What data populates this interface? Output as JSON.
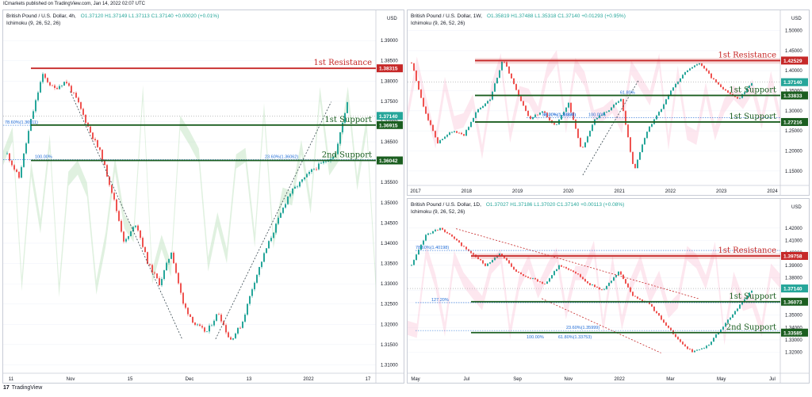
{
  "header": {
    "publisher_text": "ICmarkets published on TradingView.com, Jan 14, 2022 02:07 UTC"
  },
  "footer": {
    "logo_text": "17",
    "brand": "TradingView"
  },
  "colors": {
    "resistance": "#c62828",
    "support": "#1b5e20",
    "fib": "#1e6bd6",
    "bull": "#26a69a",
    "bear": "#ef5350",
    "ichimoku_green": "#a5d6a7",
    "ichimoku_red": "#f8bbd0"
  },
  "panels": [
    {
      "id": "left",
      "title": "British Pound / U.S. Dollar, 4h,",
      "ohlc": "O1.37120  H1.37149  L1.37113  C1.37140  +0.00020 (+0.01%)",
      "indicator": "Ichimoku (9, 26, 52, 26)",
      "currency": "USD",
      "y_ticks": [
        "1.39000",
        "1.38500",
        "1.38000",
        "1.37500",
        "1.37000",
        "1.36500",
        "1.36000",
        "1.35500",
        "1.35000",
        "1.34500",
        "1.34000",
        "1.33500",
        "1.33000",
        "1.32500",
        "1.32000",
        "1.31500",
        "1.31000"
      ],
      "x_ticks": [
        "11",
        "Nov",
        "15",
        "Dec",
        "13",
        "2022",
        "17"
      ],
      "price_tags": [
        {
          "text": "1.38315",
          "kind": "resistance"
        },
        {
          "text": "1.37140",
          "kind": "current"
        },
        {
          "text": "1.36915",
          "kind": "support"
        },
        {
          "text": "1.36042",
          "kind": "support"
        }
      ],
      "labels": [
        {
          "text": "1st Resistance",
          "kind": "resistance"
        },
        {
          "text": "1st Support",
          "kind": "support"
        },
        {
          "text": "2nd Support",
          "kind": "support"
        }
      ],
      "fib_labels": [
        "78.60%(1.36911)",
        "100.00%",
        "23.60%(1.36062)"
      ]
    },
    {
      "id": "top-right",
      "title": "British Pound / U.S. Dollar, 1W,",
      "ohlc": "O1.35819  H1.37488  L1.35318  C1.37140  +0.01293 (+0.95%)",
      "indicator": "Ichimoku (9, 26, 52, 26)",
      "currency": "USD",
      "y_ticks": [
        "1.50000",
        "1.45000",
        "1.40000",
        "1.35000",
        "1.30000",
        "1.25000",
        "1.20000",
        "1.15000"
      ],
      "x_ticks": [
        "2017",
        "2018",
        "2019",
        "2020",
        "2021",
        "2022",
        "2023",
        "2024"
      ],
      "price_tags": [
        {
          "text": "1.42529",
          "kind": "resistance"
        },
        {
          "text": "1.37140",
          "kind": "current"
        },
        {
          "text": "1.33833",
          "kind": "support"
        },
        {
          "text": "1.27216",
          "kind": "support"
        }
      ],
      "labels": [
        {
          "text": "1st Resistance",
          "kind": "resistance"
        },
        {
          "text": "1st Support",
          "kind": "support"
        },
        {
          "text": "1st Support",
          "kind": "support"
        }
      ],
      "fib_labels": [
        "61.80%",
        "100.00%",
        "38.20%(1.33828)",
        "50.00%(1.28285)"
      ]
    },
    {
      "id": "bottom-right",
      "title": "British Pound / U.S. Dollar, 1D,",
      "ohlc": "O1.37027  H1.37186  L1.37020  C1.37140  +0.00113 (+0.08%)",
      "indicator": "Ichimoku (9, 26, 52, 26)",
      "currency": "USD",
      "y_ticks": [
        "1.42000",
        "1.41000",
        "1.40000",
        "1.39000",
        "1.38000",
        "1.37000",
        "1.36000",
        "1.35000",
        "1.34000",
        "1.33000",
        "1.32000"
      ],
      "x_ticks": [
        "May",
        "Jul",
        "Sep",
        "Nov",
        "2022",
        "Mar",
        "May",
        "Jul"
      ],
      "price_tags": [
        {
          "text": "1.39758",
          "kind": "resistance"
        },
        {
          "text": "1.37140",
          "kind": "current"
        },
        {
          "text": "1.36073",
          "kind": "support"
        },
        {
          "text": "1.33585",
          "kind": "support"
        }
      ],
      "labels": [
        {
          "text": "1st Resistance",
          "kind": "resistance"
        },
        {
          "text": "1st Support",
          "kind": "support"
        },
        {
          "text": "2nd Support",
          "kind": "support"
        }
      ],
      "fib_labels": [
        "78.60%(1.40198)",
        "127.20%",
        "23.60%(1.35999)",
        "100.00%",
        "61.80%(1.33753)"
      ]
    }
  ],
  "chart_data": [
    {
      "type": "candlestick",
      "title": "British Pound / U.S. Dollar, 4h",
      "ylim": [
        1.3095,
        1.3955
      ],
      "levels": {
        "resistance": [
          1.38315
        ],
        "support": [
          1.36915,
          1.36042
        ],
        "current": 1.3714
      },
      "fib_levels": [
        {
          "label": "78.60%(1.36911)",
          "value": 1.36911
        },
        {
          "label": "23.60%(1.36062)",
          "value": 1.36062
        }
      ],
      "path": [
        1.362,
        1.356,
        1.37,
        1.3815,
        1.378,
        1.38,
        1.375,
        1.368,
        1.362,
        1.352,
        1.34,
        1.345,
        1.335,
        1.33,
        1.338,
        1.325,
        1.32,
        1.318,
        1.323,
        1.316,
        1.32,
        1.33,
        1.338,
        1.345,
        1.352,
        1.355,
        1.358,
        1.36,
        1.362,
        1.375
      ]
    },
    {
      "type": "candlestick",
      "title": "British Pound / U.S. Dollar, 1W",
      "ylim": [
        1.12,
        1.515
      ],
      "levels": {
        "resistance": [
          1.42529
        ],
        "support": [
          1.33833,
          1.27216
        ],
        "current": 1.3714
      },
      "fib_levels": [
        {
          "label": "38.20%(1.33828)",
          "value": 1.33828
        },
        {
          "label": "50.00%(1.28285)",
          "value": 1.28285
        }
      ],
      "path": [
        1.42,
        1.3,
        1.22,
        1.25,
        1.24,
        1.3,
        1.33,
        1.43,
        1.35,
        1.28,
        1.3,
        1.26,
        1.32,
        1.2,
        1.28,
        1.3,
        1.33,
        1.15,
        1.25,
        1.3,
        1.36,
        1.4,
        1.42,
        1.38,
        1.35,
        1.33,
        1.37
      ]
    },
    {
      "type": "candlestick",
      "title": "British Pound / U.S. Dollar, 1D",
      "ylim": [
        1.307,
        1.432
      ],
      "levels": {
        "resistance": [
          1.39758
        ],
        "support": [
          1.36073,
          1.33585
        ],
        "current": 1.3714
      },
      "fib_levels": [
        {
          "label": "78.60%(1.40198)",
          "value": 1.40198
        },
        {
          "label": "23.60%(1.35999)",
          "value": 1.35999
        },
        {
          "label": "61.80%(1.33753)",
          "value": 1.33753
        }
      ],
      "path": [
        1.39,
        1.415,
        1.42,
        1.41,
        1.4,
        1.39,
        1.4,
        1.385,
        1.38,
        1.375,
        1.39,
        1.385,
        1.375,
        1.37,
        1.385,
        1.365,
        1.36,
        1.345,
        1.33,
        1.32,
        1.325,
        1.34,
        1.355,
        1.37
      ]
    }
  ]
}
